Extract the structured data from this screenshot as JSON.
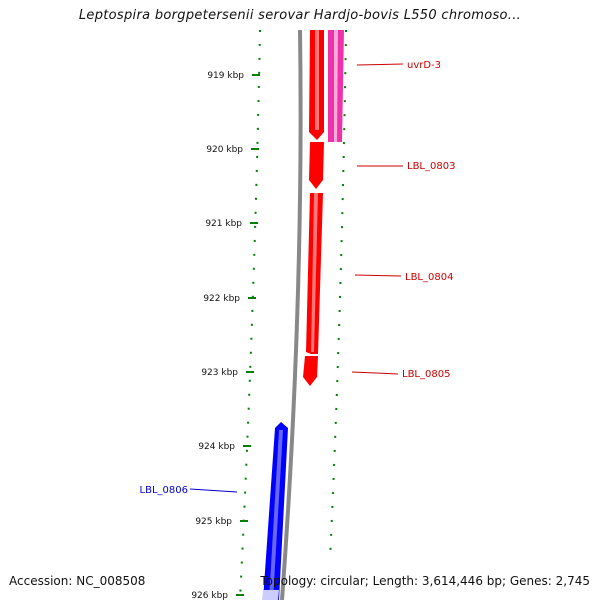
{
  "title": "Leptospira borgpetersenii serovar Hardjo-bovis L550 chromoso...",
  "footer": {
    "accession": "Accession: NC_008508",
    "summary": "Topology: circular; Length: 3,614,446 bp; Genes: 2,745"
  },
  "colors": {
    "forward_gene": "#ff0000",
    "forward_gene_pink": "#ee33aa",
    "reverse_gene": "#0000ff",
    "backbone": "#888888",
    "tick": "#008000",
    "forward_label": "#cc0000",
    "reverse_label": "#0000cc"
  },
  "ticks": [
    "919 kbp",
    "920 kbp",
    "921 kbp",
    "922 kbp",
    "923 kbp",
    "924 kbp",
    "925 kbp",
    "926 kbp"
  ],
  "genes": [
    {
      "name": "uvrD-3",
      "strand": "+",
      "color": "pink"
    },
    {
      "name": "LBL_0803",
      "strand": "+",
      "color": "red"
    },
    {
      "name": "LBL_0804",
      "strand": "+",
      "color": "red"
    },
    {
      "name": "LBL_0805",
      "strand": "+",
      "color": "red"
    },
    {
      "name": "LBL_0806",
      "strand": "-",
      "color": "blue"
    }
  ]
}
